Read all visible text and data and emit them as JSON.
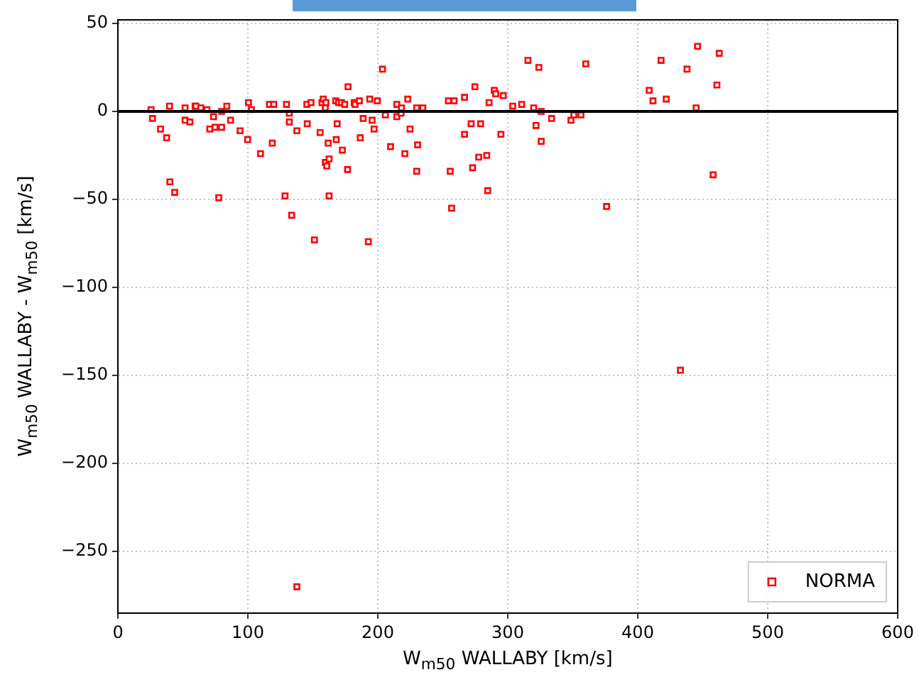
{
  "chart_data": {
    "type": "scatter",
    "xlabel": "W$_{m50}$ WALLABY [km/s]",
    "ylabel": "W$_{m50}$ WALLABY - W$_{m50}$ [km/s]",
    "xlim": [
      0,
      600
    ],
    "xticks": [
      0,
      100,
      200,
      300,
      400,
      500,
      600
    ],
    "ylim": [
      -285,
      52
    ],
    "yticks": [
      -250,
      -200,
      -150,
      -100,
      -50,
      0,
      50
    ],
    "grid": true,
    "legend": "bottom right",
    "marker": "square",
    "ref_lines": [
      {
        "axis": "y",
        "value": 0,
        "color": "#000000",
        "line_style": "solid"
      }
    ],
    "series": [
      {
        "name": "NORMA",
        "color": "#ff0000",
        "x": [
          25.5,
          26.6,
          32.8,
          37.5,
          39.7,
          40,
          43.7,
          51.7,
          51.7,
          55.4,
          59.4,
          60,
          63.8,
          68.5,
          73.6,
          70.7,
          74.7,
          77.6,
          79.8,
          79.8,
          83.8,
          86.7,
          94,
          99.8,
          100.5,
          102.7,
          109.7,
          116.6,
          119.9,
          118.8,
          128.6,
          129.7,
          131.9,
          131.9,
          133.7,
          137.7,
          145.7,
          145.4,
          148.6,
          151.2,
          155.6,
          157,
          158,
          160,
          159.6,
          159.6,
          160.7,
          161.8,
          162.5,
          162.5,
          167.6,
          168,
          168.7,
          169.8,
          172,
          174.5,
          172.7,
          177.1,
          176.7,
          181.8,
          182.5,
          185.8,
          186.5,
          188.7,
          192.7,
          193.8,
          195.6,
          197.1,
          199.6,
          203.6,
          205.8,
          209.8,
          214.6,
          214.6,
          218.2,
          217.9,
          220.8,
          223,
          224.8,
          229.9,
          234.6,
          230.6,
          229.9,
          254.3,
          258.7,
          255.7,
          256.8,
          266.7,
          266.7,
          271.8,
          274.7,
          279.1,
          277.6,
          272.9,
          283.8,
          284.5,
          285.6,
          289.6,
          290.7,
          294.7,
          296.5,
          303.8,
          310.7,
          315.5,
          319.9,
          321.7,
          323.9,
          325.7,
          325.7,
          333.7,
          348.6,
          350.8,
          356.3,
          360,
          376,
          408.8,
          411.7,
          417.9,
          421.9,
          432.8,
          437.9,
          444.9,
          446,
          458,
          460.9,
          462.7,
          137.7
        ],
        "values": [
          1,
          -4,
          -10,
          -15,
          3,
          -40,
          -46,
          2,
          -5,
          -6,
          3,
          3,
          2,
          1,
          -3,
          -10,
          -9,
          -49,
          0,
          -9,
          3,
          -5,
          -11,
          -16,
          5,
          1,
          -24,
          4,
          4,
          -18,
          -48,
          4,
          -1,
          -6,
          -59,
          -11,
          -7,
          4,
          5,
          -73,
          -12,
          5,
          7,
          5,
          2,
          -29,
          -31,
          -18,
          -27,
          -48,
          6,
          -16,
          -7,
          5,
          5,
          4,
          -22,
          14,
          -33,
          5,
          4,
          6,
          -15,
          -4,
          -74,
          7,
          -5,
          -10,
          6,
          24,
          -2,
          -20,
          4,
          -3,
          2,
          -1,
          -24,
          7,
          -10,
          2,
          2,
          -19,
          -34,
          6,
          6,
          -34,
          -55,
          8,
          -13,
          -7,
          14,
          -7,
          -26,
          -32,
          -25,
          -45,
          5,
          12,
          10,
          -13,
          9,
          3,
          4,
          29,
          2,
          -8,
          25,
          0,
          -17,
          -4,
          -5,
          -2,
          -2,
          27,
          -54,
          12,
          6,
          29,
          7,
          -147,
          24,
          2,
          37,
          -36,
          15,
          33,
          -270
        ]
      }
    ]
  }
}
